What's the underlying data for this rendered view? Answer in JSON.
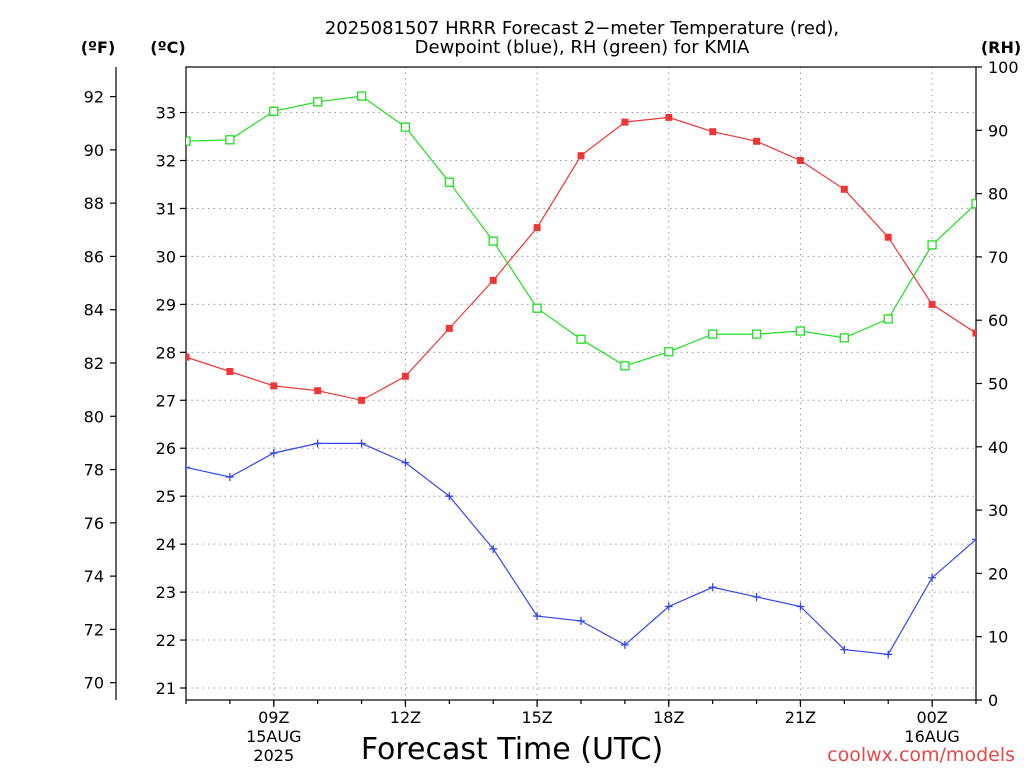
{
  "credit": "coolwx.com/models",
  "colors": {
    "credit": "#e24a4a",
    "grid": "#9a9a9a",
    "axis": "#000000"
  },
  "chart_data": {
    "type": "line",
    "title": [
      "2025081507 HRRR Forecast 2−meter Temperature (red),",
      "Dewpoint (blue), RH (green) for KMIA"
    ],
    "xlabel": "Forecast Time (UTC)",
    "x": [
      7,
      8,
      9,
      10,
      11,
      12,
      13,
      14,
      15,
      16,
      17,
      18,
      19,
      20,
      21,
      22,
      23,
      0,
      1
    ],
    "x_ticks": [
      {
        "label": "09Z",
        "sub": [
          "15AUG",
          "2025"
        ]
      },
      {
        "label": "12Z",
        "sub": []
      },
      {
        "label": "15Z",
        "sub": []
      },
      {
        "label": "18Z",
        "sub": []
      },
      {
        "label": "21Z",
        "sub": []
      },
      {
        "label": "00Z",
        "sub": [
          "16AUG"
        ]
      }
    ],
    "grid": true,
    "axes": {
      "fahrenheit": {
        "label": "(ºF)",
        "ticks": [
          70,
          72,
          74,
          76,
          78,
          80,
          82,
          84,
          86,
          88,
          90,
          92
        ]
      },
      "celsius": {
        "label": "(ºC)",
        "range": [
          20.75,
          33.95
        ],
        "ticks": [
          21,
          22,
          23,
          24,
          25,
          26,
          27,
          28,
          29,
          30,
          31,
          32,
          33
        ]
      },
      "rh": {
        "label": "(RH)",
        "range": [
          0,
          100
        ],
        "ticks": [
          0,
          10,
          20,
          30,
          40,
          50,
          60,
          70,
          80,
          90,
          100
        ]
      }
    },
    "series": {
      "temperature": {
        "color": "#ee3636",
        "values": [
          27.9,
          27.6,
          27.3,
          27.2,
          27.0,
          27.5,
          28.5,
          29.5,
          30.6,
          32.1,
          32.8,
          32.9,
          32.6,
          32.4,
          32.0,
          31.4,
          30.4,
          29.0,
          28.4
        ]
      },
      "dewpoint": {
        "color": "#3346ee",
        "values": [
          25.6,
          25.4,
          25.9,
          26.1,
          26.1,
          25.7,
          25.0,
          23.9,
          22.5,
          22.4,
          21.9,
          22.7,
          23.1,
          22.9,
          22.7,
          21.8,
          21.7,
          23.3,
          24.1
        ]
      },
      "rh": {
        "color": "#22dd22",
        "values": [
          88.3,
          88.5,
          93.0,
          94.5,
          95.4,
          90.5,
          81.8,
          72.5,
          61.9,
          57.0,
          52.8,
          55.0,
          57.8,
          57.8,
          58.3,
          57.2,
          60.2,
          71.9,
          78.4
        ]
      }
    }
  }
}
